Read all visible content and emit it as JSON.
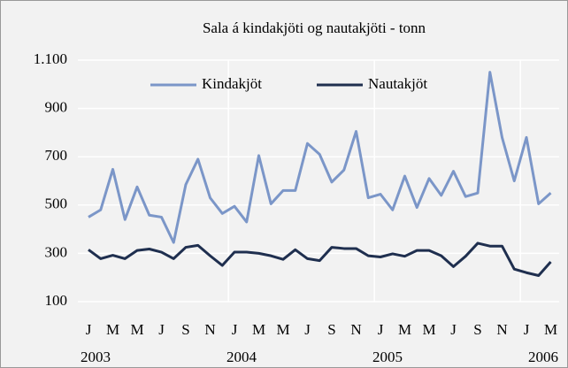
{
  "chart_data": {
    "type": "line",
    "title": "Sala á kindakjöti og nautakjöti - tonn",
    "categories": [
      "J",
      null,
      "M",
      null,
      "M",
      null,
      "J",
      null,
      "S",
      null,
      "N",
      null,
      "J",
      null,
      "M",
      null,
      "M",
      null,
      "J",
      null,
      "S",
      null,
      "N",
      null,
      "J",
      null,
      "M",
      null,
      "M",
      null,
      "J",
      null,
      "S",
      null,
      "N",
      null,
      "J",
      null,
      "M"
    ],
    "year_labels": [
      "2003",
      "2004",
      "2005",
      "2006"
    ],
    "series": [
      {
        "name": "Kindakjöt",
        "color": "#7b96c8",
        "values": [
          450,
          480,
          648,
          440,
          575,
          458,
          450,
          345,
          585,
          690,
          530,
          465,
          495,
          430,
          705,
          505,
          560,
          560,
          755,
          710,
          595,
          645,
          805,
          530,
          545,
          480,
          620,
          490,
          610,
          540,
          640,
          535,
          550,
          1050,
          780,
          600,
          780,
          505,
          550
        ]
      },
      {
        "name": "Nautakjöt",
        "color": "#1f2f4f",
        "values": [
          315,
          278,
          292,
          278,
          312,
          318,
          305,
          278,
          325,
          333,
          290,
          250,
          305,
          305,
          300,
          290,
          275,
          315,
          278,
          270,
          325,
          320,
          320,
          290,
          285,
          298,
          288,
          312,
          312,
          290,
          245,
          288,
          342,
          330,
          330,
          235,
          220,
          208,
          265
        ]
      }
    ],
    "ylim": [
      100,
      1100
    ],
    "yticks": [
      100,
      300,
      500,
      700,
      900,
      {
        "value": 1100,
        "label": "1.100"
      }
    ],
    "grid": true,
    "legend": "top"
  }
}
